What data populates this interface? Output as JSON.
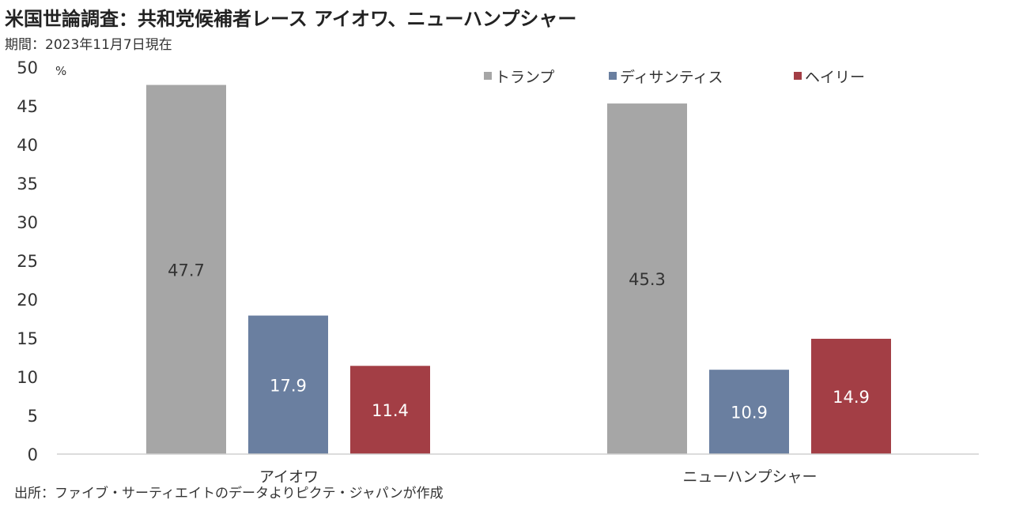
{
  "title": "米国世論調査：共和党候補者レース アイオワ、ニューハンプシャー",
  "subtitle": "期間：2023年11月7日現在",
  "source": "出所：ファイブ・サーティエイトのデータよりピクテ・ジャパンが作成",
  "chart_data": {
    "type": "bar",
    "unit_label": "%",
    "categories": [
      "アイオワ",
      "ニューハンプシャー"
    ],
    "series": [
      {
        "name": "トランプ",
        "color": "#a6a6a6",
        "values": [
          47.7,
          45.3
        ]
      },
      {
        "name": "ディサンティス",
        "color": "#6a7fa0",
        "values": [
          17.9,
          10.9
        ]
      },
      {
        "name": "ヘイリー",
        "color": "#a33e45",
        "values": [
          11.4,
          14.9
        ]
      }
    ],
    "ylim": [
      0,
      50
    ],
    "yticks": [
      0,
      5,
      10,
      15,
      20,
      25,
      30,
      35,
      40,
      45,
      50
    ],
    "legend_position": "top-right",
    "grid": false,
    "data_label_color": "#ffffff"
  }
}
